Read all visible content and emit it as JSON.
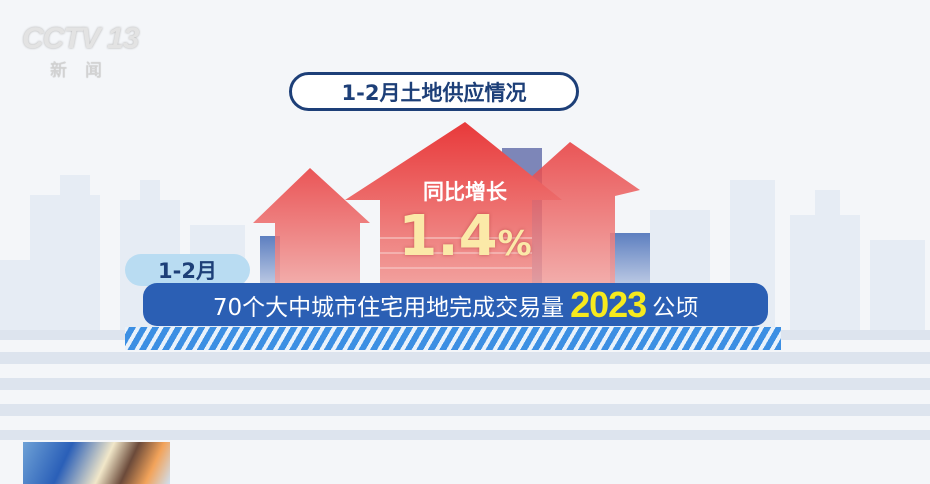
{
  "logo": {
    "brand": "CCTV",
    "channel": "13",
    "subtitle": "新闻"
  },
  "title": "1-2月土地供应情况",
  "growth": {
    "label": "同比增长",
    "value": "1.4",
    "unit": "%"
  },
  "period": "1-2月",
  "headline": {
    "prefix": "70个大中城市住宅用地完成交易量",
    "number": "2023",
    "unit": "公顷"
  },
  "colors": {
    "navy": "#1d3f78",
    "bar_blue": "#2b5fb4",
    "highlight_yellow": "#f6ea1e",
    "arrow_red": "#e23a3a"
  }
}
